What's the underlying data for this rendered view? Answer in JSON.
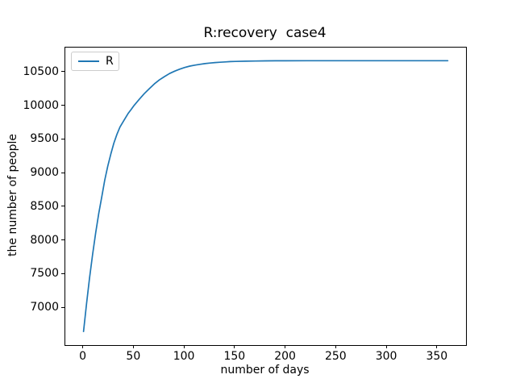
{
  "chart_data": {
    "type": "line",
    "title": "R:recovery  case4",
    "xlabel": "number of days",
    "ylabel": "the number of people",
    "xticks": [
      0,
      50,
      100,
      150,
      200,
      250,
      300,
      350
    ],
    "yticks": [
      7000,
      7500,
      8000,
      8500,
      9000,
      9500,
      10000,
      10500
    ],
    "xlim": [
      -18,
      378
    ],
    "ylim": [
      6449,
      10871
    ],
    "grid": false,
    "background_color": "#ffffff",
    "legend_position": "upper left",
    "series": [
      {
        "name": "R",
        "color": "#1f77b4",
        "points": [
          [
            0,
            6650
          ],
          [
            3,
            7070
          ],
          [
            6,
            7450
          ],
          [
            9,
            7800
          ],
          [
            12,
            8120
          ],
          [
            15,
            8400
          ],
          [
            18,
            8650
          ],
          [
            21,
            8900
          ],
          [
            24,
            9110
          ],
          [
            27,
            9290
          ],
          [
            30,
            9450
          ],
          [
            33,
            9580
          ],
          [
            36,
            9690
          ],
          [
            40,
            9790
          ],
          [
            44,
            9890
          ],
          [
            47,
            9950
          ],
          [
            50,
            10010
          ],
          [
            55,
            10100
          ],
          [
            60,
            10185
          ],
          [
            65,
            10260
          ],
          [
            70,
            10330
          ],
          [
            75,
            10390
          ],
          [
            80,
            10440
          ],
          [
            85,
            10485
          ],
          [
            90,
            10520
          ],
          [
            95,
            10550
          ],
          [
            100,
            10575
          ],
          [
            105,
            10595
          ],
          [
            110,
            10610
          ],
          [
            115,
            10622
          ],
          [
            120,
            10632
          ],
          [
            125,
            10641
          ],
          [
            130,
            10648
          ],
          [
            135,
            10653
          ],
          [
            140,
            10658
          ],
          [
            145,
            10662
          ],
          [
            150,
            10665
          ],
          [
            160,
            10669
          ],
          [
            170,
            10671
          ],
          [
            180,
            10673
          ],
          [
            190,
            10674
          ],
          [
            200,
            10675
          ],
          [
            220,
            10676
          ],
          [
            240,
            10676
          ],
          [
            260,
            10676
          ],
          [
            280,
            10676
          ],
          [
            300,
            10676
          ],
          [
            320,
            10676
          ],
          [
            340,
            10676
          ],
          [
            360,
            10676
          ]
        ]
      }
    ]
  }
}
